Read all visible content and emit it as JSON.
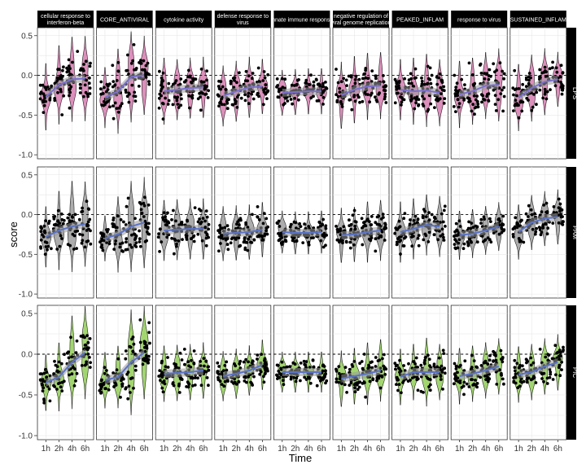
{
  "chart_data": {
    "type": "scatter",
    "subtype": "faceted violin + jitter + loess trend",
    "xlabel": "Time",
    "ylabel": "score",
    "x_categories": [
      "1h",
      "2h",
      "4h",
      "6h"
    ],
    "ylim": [
      -1.05,
      0.6
    ],
    "y_ticks": [
      {
        "value": 0.5,
        "label": "0.5"
      },
      {
        "value": 0.0,
        "label": "0.0"
      },
      {
        "value": -0.5,
        "label": "-0.5"
      },
      {
        "value": -1.0,
        "label": "-1.0"
      }
    ],
    "reference_line_y": 0,
    "grid": true,
    "columns": [
      {
        "key": "c1",
        "label_lines": [
          "cellular response to",
          "interferon-beta"
        ]
      },
      {
        "key": "c2",
        "label_lines": [
          "CORE_ANTIVIRAL"
        ]
      },
      {
        "key": "c3",
        "label_lines": [
          "cytokine activity"
        ]
      },
      {
        "key": "c4",
        "label_lines": [
          "defense response to",
          "virus"
        ]
      },
      {
        "key": "c5",
        "label_lines": [
          "innate immune response"
        ]
      },
      {
        "key": "c6",
        "label_lines": [
          "negative regulation of",
          "viral genome replication"
        ]
      },
      {
        "key": "c7",
        "label_lines": [
          "PEAKED_INFLAM"
        ]
      },
      {
        "key": "c8",
        "label_lines": [
          "response to virus"
        ]
      },
      {
        "key": "c9",
        "label_lines": [
          "SUSTAINED_INFLAM"
        ]
      }
    ],
    "rows": [
      {
        "label": "LPS",
        "violin_color": "#d77db0",
        "trend_color": "#7b6fd0",
        "trend": [
          [
            -0.27,
            -0.12,
            -0.05,
            -0.04
          ],
          [
            -0.28,
            -0.2,
            -0.02,
            0.0
          ],
          [
            -0.2,
            -0.18,
            -0.16,
            -0.15
          ],
          [
            -0.26,
            -0.2,
            -0.15,
            -0.14
          ],
          [
            -0.22,
            -0.21,
            -0.2,
            -0.2
          ],
          [
            -0.25,
            -0.18,
            -0.14,
            -0.13
          ],
          [
            -0.18,
            -0.2,
            -0.19,
            -0.22
          ],
          [
            -0.24,
            -0.2,
            -0.13,
            -0.12
          ],
          [
            -0.28,
            -0.16,
            -0.08,
            -0.05
          ]
        ],
        "spread": [
          [
            0.22,
            0.26,
            0.28,
            0.28
          ],
          [
            0.2,
            0.28,
            0.3,
            0.26
          ],
          [
            0.22,
            0.2,
            0.2,
            0.2
          ],
          [
            0.2,
            0.2,
            0.2,
            0.18
          ],
          [
            0.15,
            0.15,
            0.15,
            0.15
          ],
          [
            0.22,
            0.22,
            0.22,
            0.22
          ],
          [
            0.2,
            0.22,
            0.24,
            0.22
          ],
          [
            0.22,
            0.22,
            0.22,
            0.24
          ],
          [
            0.22,
            0.22,
            0.22,
            0.18
          ]
        ]
      },
      {
        "label": "PAM",
        "violin_color": "#9f9f9f",
        "trend_color": "#5a73c8",
        "trend": [
          [
            -0.28,
            -0.2,
            -0.15,
            -0.12
          ],
          [
            -0.3,
            -0.25,
            -0.15,
            -0.1
          ],
          [
            -0.2,
            -0.19,
            -0.18,
            -0.18
          ],
          [
            -0.24,
            -0.23,
            -0.22,
            -0.19
          ],
          [
            -0.22,
            -0.23,
            -0.23,
            -0.22
          ],
          [
            -0.26,
            -0.25,
            -0.22,
            -0.2
          ],
          [
            -0.22,
            -0.18,
            -0.13,
            -0.15
          ],
          [
            -0.26,
            -0.24,
            -0.2,
            -0.15
          ],
          [
            -0.22,
            -0.1,
            -0.05,
            -0.03
          ]
        ],
        "spread": [
          [
            0.2,
            0.26,
            0.3,
            0.28
          ],
          [
            0.15,
            0.25,
            0.3,
            0.3
          ],
          [
            0.2,
            0.2,
            0.2,
            0.2
          ],
          [
            0.18,
            0.18,
            0.18,
            0.18
          ],
          [
            0.14,
            0.14,
            0.14,
            0.14
          ],
          [
            0.18,
            0.18,
            0.2,
            0.2
          ],
          [
            0.2,
            0.2,
            0.2,
            0.2
          ],
          [
            0.16,
            0.16,
            0.16,
            0.16
          ],
          [
            0.18,
            0.18,
            0.18,
            0.18
          ]
        ]
      },
      {
        "label": "PIC",
        "violin_color": "#93cf58",
        "trend_color": "#5a73c8",
        "trend": [
          [
            -0.35,
            -0.28,
            -0.1,
            0.02
          ],
          [
            -0.32,
            -0.28,
            -0.1,
            0.02
          ],
          [
            -0.24,
            -0.23,
            -0.22,
            -0.2
          ],
          [
            -0.27,
            -0.24,
            -0.2,
            -0.13
          ],
          [
            -0.22,
            -0.22,
            -0.22,
            -0.22
          ],
          [
            -0.3,
            -0.27,
            -0.24,
            -0.2
          ],
          [
            -0.28,
            -0.22,
            -0.22,
            -0.22
          ],
          [
            -0.27,
            -0.24,
            -0.2,
            -0.15
          ],
          [
            -0.25,
            -0.22,
            -0.15,
            -0.1
          ]
        ],
        "spread": [
          [
            0.18,
            0.22,
            0.3,
            0.3
          ],
          [
            0.18,
            0.2,
            0.34,
            0.3
          ],
          [
            0.18,
            0.18,
            0.18,
            0.18
          ],
          [
            0.16,
            0.16,
            0.16,
            0.16
          ],
          [
            0.13,
            0.13,
            0.13,
            0.13
          ],
          [
            0.18,
            0.18,
            0.2,
            0.2
          ],
          [
            0.18,
            0.18,
            0.22,
            0.18
          ],
          [
            0.18,
            0.18,
            0.18,
            0.18
          ],
          [
            0.18,
            0.18,
            0.18,
            0.18
          ]
        ]
      }
    ]
  }
}
